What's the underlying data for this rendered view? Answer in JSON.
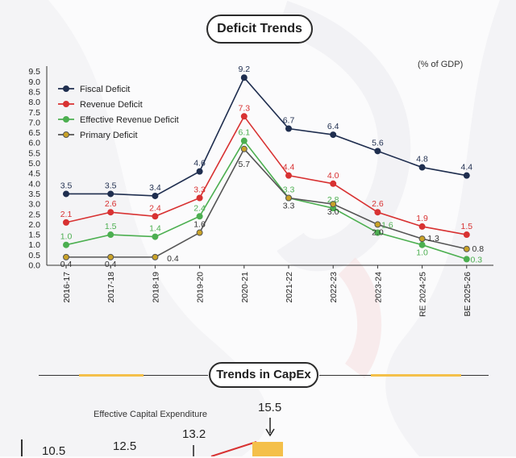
{
  "header": {
    "title": "Deficit Trends",
    "unit_label": "(% of GDP)"
  },
  "chart_data": {
    "type": "line",
    "title": "Deficit Trends",
    "ylabel": "% of GDP",
    "ylim": [
      0,
      9.5
    ],
    "yticks": [
      "0.0",
      "0.5",
      "1.0",
      "1.5",
      "2.0",
      "2.5",
      "3.0",
      "3.5",
      "4.0",
      "4.5",
      "5.0",
      "5.5",
      "6.0",
      "6.5",
      "7.0",
      "7.5",
      "8.0",
      "8.5",
      "9.0",
      "9.5"
    ],
    "categories": [
      "2016-17",
      "2017-18",
      "2018-19",
      "2019-20",
      "2020-21",
      "2021-22",
      "2022-23",
      "2023-24",
      "RE 2024-25",
      "BE 2025-26"
    ],
    "series": [
      {
        "name": "Fiscal Deficit",
        "color": "#1f2e4f",
        "values": [
          3.5,
          3.5,
          3.4,
          4.6,
          9.2,
          6.7,
          6.4,
          5.6,
          4.8,
          4.4
        ],
        "labels": [
          "3.5",
          "3.5",
          "3.4",
          "4.6",
          "9.2",
          "6.7",
          "6.4",
          "5.6",
          "4.8",
          "4.4"
        ]
      },
      {
        "name": "Revenue Deficit",
        "color": "#d83232",
        "values": [
          2.1,
          2.6,
          2.4,
          3.3,
          7.3,
          4.4,
          4.0,
          2.6,
          1.9,
          1.5
        ],
        "labels": [
          "2.1",
          "2.6",
          "2.4",
          "3.3",
          "7.3",
          "4.4",
          "4.0",
          "2.6",
          "1.9",
          "1.5"
        ]
      },
      {
        "name": "Effective Revenue Deficit",
        "color": "#4caf50",
        "values": [
          1.0,
          1.5,
          1.4,
          2.4,
          6.1,
          3.3,
          2.8,
          1.6,
          1.0,
          0.3
        ],
        "labels": [
          "1.0",
          "1.5",
          "1.4",
          "2.4",
          "6.1",
          "3.3",
          "2.8",
          "1.6",
          "1.0",
          "0.3"
        ]
      },
      {
        "name": "Primary Deficit",
        "color": "#555555",
        "marker": "#c9a227",
        "values": [
          0.4,
          0.4,
          0.4,
          1.6,
          5.7,
          3.3,
          3.0,
          2.0,
          1.3,
          0.8
        ],
        "labels": [
          "0.4",
          "0.4",
          "0.4",
          "1.6",
          "5.7",
          "3.3",
          "3.0",
          "2.0",
          "1.3",
          "0.8"
        ]
      }
    ]
  },
  "capex": {
    "title": "Trends in CapEx",
    "subtitle": "Effective Capital Expenditure",
    "values": [
      "10.5",
      "12.5",
      "13.2",
      "15.5"
    ]
  }
}
